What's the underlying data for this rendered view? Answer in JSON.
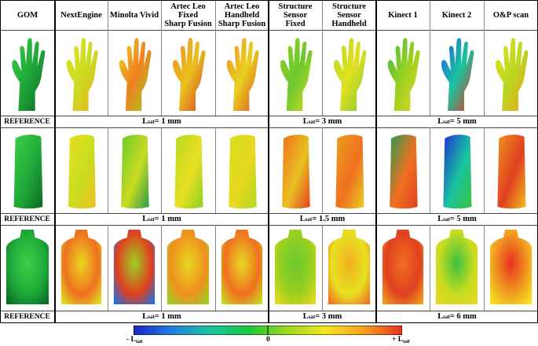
{
  "header": {
    "col0": "GOM",
    "cols": [
      "NextEngine",
      "Minolta Vivid",
      "Artec Leo\nFixed\nSharp Fusion",
      "Artec Leo\nHandheld\nSharp Fusion",
      "Structure\nSensor\nFixed",
      "Structure\nSensor\nHandheld",
      "Kinect 1",
      "Kinect 2",
      "O&P scan"
    ]
  },
  "rows": [
    {
      "subject": "hand",
      "reference_label": "REFERENCE",
      "bands": [
        {
          "prefix": "L",
          "sub": "sat",
          "value": " = 1 mm"
        },
        {
          "prefix": "L",
          "sub": "sat",
          "value": " = 3 mm"
        },
        {
          "prefix": "L",
          "sub": "sat",
          "value": " = 5 mm"
        }
      ]
    },
    {
      "subject": "forearm",
      "reference_label": "REFERENCE",
      "bands": [
        {
          "prefix": "L",
          "sub": "sat",
          "value": " = 1 mm"
        },
        {
          "prefix": "L",
          "sub": "sat",
          "value": " = 1.5 mm"
        },
        {
          "prefix": "L",
          "sub": "sat",
          "value": " = 5 mm"
        }
      ]
    },
    {
      "subject": "torso",
      "reference_label": "REFERENCE",
      "bands": [
        {
          "prefix": "L",
          "sub": "sat",
          "value": " = 1 mm"
        },
        {
          "prefix": "L",
          "sub": "sat",
          "value": " = 3 mm"
        },
        {
          "prefix": "L",
          "sub": "sat",
          "value": " = 6 mm"
        }
      ]
    }
  ],
  "colorbar": {
    "min_prefix": "- L",
    "min_sub": "sat",
    "mid": "0",
    "max_prefix": "+ L",
    "max_sub": "sat",
    "colors": [
      "#1a22c8",
      "#1f7fe0",
      "#19c4a0",
      "#19c83a",
      "#9ad81e",
      "#f5e61e",
      "#f5a01e",
      "#e8321e"
    ]
  }
}
